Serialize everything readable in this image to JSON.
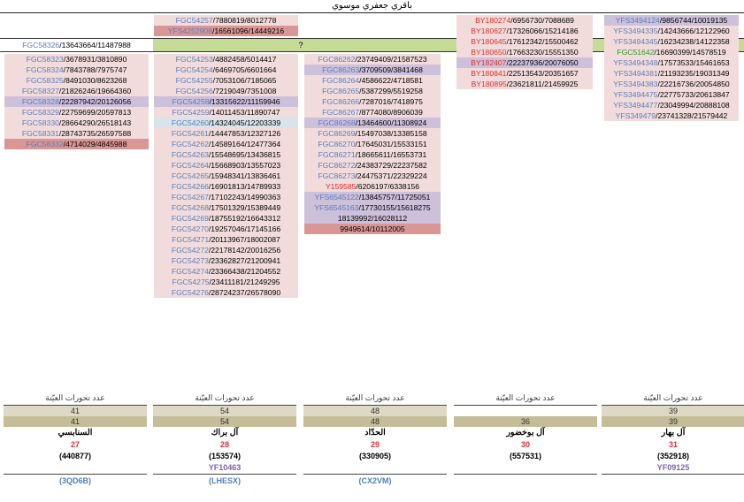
{
  "title": "باقري جعفري موسوي",
  "question_mark": "?",
  "colors": {
    "pink": "#f2dcdb",
    "red_fill": "#da9694",
    "purple_fill": "#ccc0da",
    "green_fill": "#c6dc96",
    "blue_fill": "#b8cce4"
  },
  "col1_top": [
    {
      "code": "FGC58326",
      "nums": "13643664/11487988",
      "code_color": "blue",
      "bg": "white"
    }
  ],
  "col1": [
    {
      "code": "FGC58323",
      "nums": "3678931/3810890",
      "code_color": "blue",
      "bg": "pink"
    },
    {
      "code": "FGC58324",
      "nums": "7843788/7975747",
      "code_color": "blue",
      "bg": "pink"
    },
    {
      "code": "FGC58325",
      "nums": "8491030/8623268",
      "code_color": "blue",
      "bg": "pink"
    },
    {
      "code": "FGC58327",
      "nums": "21826246/19664360",
      "code_color": "blue",
      "bg": "pink"
    },
    {
      "code": "FGC58328",
      "nums": "22287942/20126056",
      "code_color": "blue",
      "bg": "purple"
    },
    {
      "code": "FGC58329",
      "nums": "22759699/20597813",
      "code_color": "blue",
      "bg": "pink"
    },
    {
      "code": "FGC58330",
      "nums": "28664290/26518143",
      "code_color": "blue",
      "bg": "pink"
    },
    {
      "code": "FGC58331",
      "nums": "28743735/26597588",
      "code_color": "blue",
      "bg": "pink"
    },
    {
      "code": "FGC58332",
      "nums": "4714029/4845988",
      "code_color": "blue",
      "bg": "red"
    }
  ],
  "col2_top": [
    {
      "code": "FGC54257",
      "nums": "7880819/8012778",
      "code_color": "blue",
      "bg": "pink"
    },
    {
      "code": "YFS4252908",
      "nums": "16561096/14449216",
      "code_color": "blue",
      "bg": "red"
    }
  ],
  "col2": [
    {
      "code": "FGC54253",
      "nums": "4882458/5014417",
      "code_color": "blue",
      "bg": "pink"
    },
    {
      "code": "FGC54254",
      "nums": "6469705/6601664",
      "code_color": "blue",
      "bg": "pink"
    },
    {
      "code": "FGC54255",
      "nums": "7053106/7185065",
      "code_color": "blue",
      "bg": "pink"
    },
    {
      "code": "FGC54256",
      "nums": "7219049/7351008",
      "code_color": "blue",
      "bg": "pink"
    },
    {
      "code": "FGC54258",
      "nums": "13315622/11159946",
      "code_color": "blue",
      "bg": "purple"
    },
    {
      "code": "FGC54259",
      "nums": "14011453/11890747",
      "code_color": "blue",
      "bg": "pink"
    },
    {
      "code": "FGC54260",
      "nums": "14324045/12203339",
      "code_color": "blue",
      "bg": "bluegreen"
    },
    {
      "code": "FGC54261",
      "nums": "14447853/12327126",
      "code_color": "blue",
      "bg": "pink"
    },
    {
      "code": "FGC54262",
      "nums": "14589164/12477364",
      "code_color": "blue",
      "bg": "pink"
    },
    {
      "code": "FGC54263",
      "nums": "15548695/13436815",
      "code_color": "blue",
      "bg": "pink"
    },
    {
      "code": "FGC54264",
      "nums": "15668903/13557023",
      "code_color": "blue",
      "bg": "pink"
    },
    {
      "code": "FGC54265",
      "nums": "15948341/13836461",
      "code_color": "blue",
      "bg": "pink"
    },
    {
      "code": "FGC54266",
      "nums": "16901813/14789933",
      "code_color": "blue",
      "bg": "pink"
    },
    {
      "code": "FGC54267",
      "nums": "17102243/14990363",
      "code_color": "blue",
      "bg": "pink"
    },
    {
      "code": "FGC54268",
      "nums": "17501329/15389449",
      "code_color": "blue",
      "bg": "pink"
    },
    {
      "code": "FGC54269",
      "nums": "18755192/16643312",
      "code_color": "blue",
      "bg": "pink"
    },
    {
      "code": "FGC54270",
      "nums": "19257046/17145166",
      "code_color": "blue",
      "bg": "pink"
    },
    {
      "code": "FGC54271",
      "nums": "20113967/18002087",
      "code_color": "blue",
      "bg": "pink"
    },
    {
      "code": "FGC54272",
      "nums": "22178142/20016256",
      "code_color": "blue",
      "bg": "pink"
    },
    {
      "code": "FGC54273",
      "nums": "23362827/21200941",
      "code_color": "blue",
      "bg": "pink"
    },
    {
      "code": "FGC54274",
      "nums": "23366438/21204552",
      "code_color": "blue",
      "bg": "pink"
    },
    {
      "code": "FGC54275",
      "nums": "23411181/21249295",
      "code_color": "blue",
      "bg": "pink"
    },
    {
      "code": "FGC54276",
      "nums": "28724237/26578090",
      "code_color": "blue",
      "bg": "pink"
    }
  ],
  "col3": [
    {
      "code": "FGC86262",
      "nums": "23749409/21587523",
      "code_color": "blue",
      "bg": "pink"
    },
    {
      "code": "FGC86263",
      "nums": "3709509/3841468",
      "code_color": "blue",
      "bg": "purple"
    },
    {
      "code": "FGC86264",
      "nums": "4586622/4718581",
      "code_color": "blue",
      "bg": "pink"
    },
    {
      "code": "FGC86265",
      "nums": "5387299/5519258",
      "code_color": "blue",
      "bg": "pink"
    },
    {
      "code": "FGC86266",
      "nums": "7287016/7418975",
      "code_color": "blue",
      "bg": "pink"
    },
    {
      "code": "FGC86267",
      "nums": "8774080/8906039",
      "code_color": "blue",
      "bg": "pink"
    },
    {
      "code": "FGC86268",
      "nums": "13464600/11308924",
      "code_color": "blue",
      "bg": "purple"
    },
    {
      "code": "FGC86269",
      "nums": "15497038/13385158",
      "code_color": "blue",
      "bg": "pink"
    },
    {
      "code": "FGC86270",
      "nums": "17645031/15533151",
      "code_color": "blue",
      "bg": "pink"
    },
    {
      "code": "FGC86271",
      "nums": "18665611/16553731",
      "code_color": "blue",
      "bg": "pink"
    },
    {
      "code": "FGC86272",
      "nums": "24383729/22237582",
      "code_color": "blue",
      "bg": "pink"
    },
    {
      "code": "FGC86273",
      "nums": "24475371/22329224",
      "code_color": "blue",
      "bg": "pink"
    },
    {
      "code": "Y159585",
      "nums": "6206197/6338156",
      "code_color": "red",
      "bg": "pink"
    },
    {
      "code": "YFS6545122",
      "nums": "13845757/11725051",
      "code_color": "blue",
      "bg": "purple"
    },
    {
      "code": "YFS6545163",
      "nums": "17730155/15618275",
      "code_color": "blue",
      "bg": "purple"
    },
    {
      "code": "",
      "nums": "18139992/16028112",
      "code_color": "blue",
      "bg": "purple"
    },
    {
      "code": "",
      "nums": "9949614/10112005",
      "code_color": "blue",
      "bg": "red"
    }
  ],
  "col4": [
    {
      "code": "BY180274",
      "nums": "6956730/7088689",
      "code_color": "red",
      "bg": "pink"
    },
    {
      "code": "BY180627",
      "nums": "17326066/15214186",
      "code_color": "red",
      "bg": "pink"
    },
    {
      "code": "BY180645",
      "nums": "17612342/15500462",
      "code_color": "red",
      "bg": "pink"
    },
    {
      "code": "BY180650",
      "nums": "17663230/15551350",
      "code_color": "red",
      "bg": "pink"
    },
    {
      "code": "BY182407",
      "nums": "22237936/20076050",
      "code_color": "red",
      "bg": "purple"
    },
    {
      "code": "BY180841",
      "nums": "22513543/20351657",
      "code_color": "red",
      "bg": "pink"
    },
    {
      "code": "BY180895",
      "nums": "23621811/21459925",
      "code_color": "red",
      "bg": "pink"
    }
  ],
  "col5": [
    {
      "code": "YFS3494124",
      "nums": "9856744/10019135",
      "code_color": "blue",
      "bg": "purple"
    },
    {
      "code": "YFS3494335",
      "nums": "14243666/12122960",
      "code_color": "blue",
      "bg": "pink"
    },
    {
      "code": "YFS3494345",
      "nums": "16234238/14122358",
      "code_color": "blue",
      "bg": "pink"
    },
    {
      "code": "FGC51642",
      "nums": "16690399/14578519",
      "code_color": "green",
      "bg": "pink"
    },
    {
      "code": "YFS3494348",
      "nums": "17573533/15461653",
      "code_color": "blue",
      "bg": "pink"
    },
    {
      "code": "YFS3494381",
      "nums": "21193235/19031349",
      "code_color": "blue",
      "bg": "pink"
    },
    {
      "code": "YFS3494383",
      "nums": "22216736/20054850",
      "code_color": "blue",
      "bg": "pink"
    },
    {
      "code": "YFS3494475",
      "nums": "22775733/20613847",
      "code_color": "blue",
      "bg": "pink"
    },
    {
      "code": "YFS3494477",
      "nums": "23049994/20888108",
      "code_color": "blue",
      "bg": "pink"
    },
    {
      "code": "YFS349479",
      "nums": "23741328/21579442",
      "code_color": "blue",
      "bg": "pink"
    }
  ],
  "summary": [
    {
      "label": "عدد تحورات العيّنة",
      "n1": "39",
      "n2": "39",
      "name": "آل بهار",
      "num": "31",
      "paren": "(352918)",
      "sub": "YF09125",
      "hap": ""
    },
    {
      "label": "عدد تحورات العيّنة",
      "n1": "",
      "n2": "36",
      "name": "آل بوخضور",
      "num": "30",
      "paren": "(557531)",
      "sub": "",
      "hap": ""
    },
    {
      "label": "عدد تحورات العيّنة",
      "n1": "48",
      "n2": "48",
      "name": "الحدّاد",
      "num": "29",
      "paren": "(330905)",
      "sub": "",
      "hap": "(CX2VM)"
    },
    {
      "label": "عدد تحورات العيّنة",
      "n1": "54",
      "n2": "54",
      "name": "آل براك",
      "num": "28",
      "paren": "(153574)",
      "sub": "YF10463",
      "hap": "(LHESX)"
    },
    {
      "label": "عدد تحورات العيّنة",
      "n1": "41",
      "n2": "41",
      "name": "السنابسي",
      "num": "27",
      "paren": "(440877)",
      "sub": "",
      "hap": "(3QD6B)"
    }
  ]
}
